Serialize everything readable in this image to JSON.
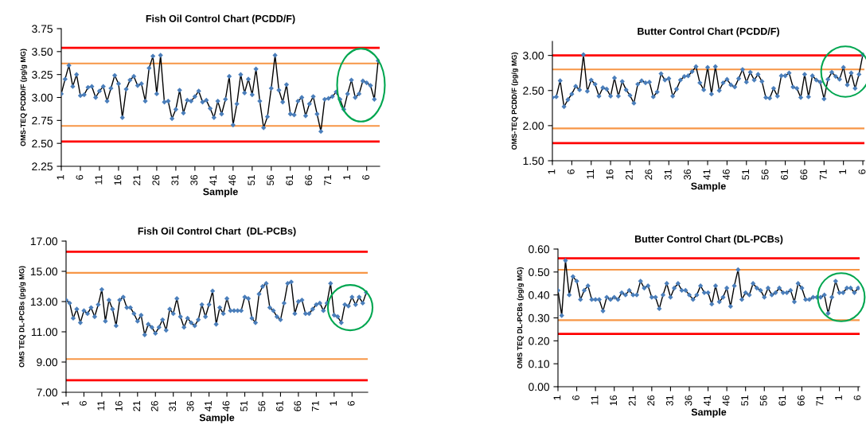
{
  "chart_data": [
    {
      "type": "line",
      "title": "Fish Oil Control Chart (PCDD/F)",
      "xlabel": "Sample",
      "ylabel": "OMS-TEQ PCDD/F (pg/g MG)",
      "marker": "diamond",
      "grid": false,
      "legend": false,
      "categories": [
        "1",
        null,
        null,
        null,
        null,
        "6",
        null,
        null,
        null,
        null,
        "11",
        null,
        null,
        null,
        null,
        "16",
        null,
        null,
        null,
        null,
        "21",
        null,
        null,
        null,
        null,
        "26",
        null,
        null,
        null,
        null,
        "31",
        null,
        null,
        null,
        null,
        "36",
        null,
        null,
        null,
        null,
        "41",
        null,
        null,
        null,
        null,
        "46",
        null,
        null,
        null,
        null,
        "51",
        null,
        null,
        null,
        null,
        "56",
        null,
        null,
        null,
        null,
        "61",
        null,
        null,
        null,
        null,
        "66",
        null,
        null,
        null,
        null,
        "71",
        null,
        null,
        null,
        null,
        "1",
        null,
        null,
        null,
        null,
        "6",
        null,
        null,
        null
      ],
      "series": [
        {
          "color": "#4a7ebb",
          "values": [
            3.04,
            3.2,
            3.35,
            3.12,
            3.25,
            3.02,
            3.03,
            3.11,
            3.12,
            3.0,
            3.07,
            3.12,
            2.96,
            3.1,
            3.24,
            3.15,
            2.78,
            3.09,
            3.19,
            3.23,
            3.13,
            3.15,
            2.96,
            3.32,
            3.45,
            3.04,
            3.46,
            2.95,
            2.96,
            2.77,
            2.87,
            3.08,
            2.83,
            2.97,
            2.96,
            3.01,
            3.07,
            2.95,
            2.97,
            2.88,
            2.78,
            2.96,
            2.82,
            2.98,
            3.23,
            2.7,
            2.93,
            3.25,
            3.05,
            3.2,
            3.03,
            3.31,
            2.96,
            2.67,
            2.79,
            3.1,
            3.46,
            3.08,
            2.95,
            3.14,
            2.82,
            2.81,
            2.96,
            3.0,
            2.8,
            2.93,
            3.01,
            2.82,
            2.63,
            2.98,
            2.99,
            3.01,
            3.06,
            2.98,
            2.87,
            3.04,
            3.19,
            3.0,
            3.04,
            3.18,
            3.16,
            3.13,
            2.98,
            3.4
          ]
        }
      ],
      "ylim": [
        2.25,
        3.75
      ],
      "yticks": [
        {
          "value": 2.25,
          "label": "2.25"
        },
        {
          "value": 2.5,
          "label": "2.50"
        },
        {
          "value": 2.75,
          "label": "2.75"
        },
        {
          "value": 3.0,
          "label": "3.00"
        },
        {
          "value": 3.25,
          "label": "3.25"
        },
        {
          "value": 3.5,
          "label": "3.50"
        },
        {
          "value": 3.75,
          "label": "3.75"
        }
      ],
      "ref_lines": [
        {
          "axis": "y",
          "value": 3.54,
          "color": "#ff0000"
        },
        {
          "axis": "y",
          "value": 3.37,
          "color": "#f79646"
        },
        {
          "axis": "y",
          "value": 2.69,
          "color": "#f79646"
        },
        {
          "axis": "y",
          "value": 2.52,
          "color": "#ff0000"
        }
      ]
    },
    {
      "type": "line",
      "title": "Butter Control Chart (PCDD/F)",
      "xlabel": "Sample",
      "ylabel": "OMS-TEQ PCDD/F (pg/g MG)",
      "marker": "diamond",
      "grid": false,
      "legend": false,
      "categories": [
        "1",
        null,
        null,
        null,
        null,
        "6",
        null,
        null,
        null,
        null,
        "11",
        null,
        null,
        null,
        null,
        "16",
        null,
        null,
        null,
        null,
        "21",
        null,
        null,
        null,
        null,
        "26",
        null,
        null,
        null,
        null,
        "31",
        null,
        null,
        null,
        null,
        "36",
        null,
        null,
        null,
        null,
        "41",
        null,
        null,
        null,
        null,
        "46",
        null,
        null,
        null,
        null,
        "51",
        null,
        null,
        null,
        null,
        "56",
        null,
        null,
        null,
        null,
        "61",
        null,
        null,
        null,
        null,
        "66",
        null,
        null,
        null,
        null,
        "71",
        null,
        null,
        null,
        null,
        "1",
        null,
        null,
        null,
        null,
        "6"
      ],
      "series": [
        {
          "color": "#4a7ebb",
          "values": [
            2.4,
            2.41,
            2.64,
            2.27,
            2.37,
            2.45,
            2.56,
            2.51,
            3.01,
            2.49,
            2.65,
            2.59,
            2.42,
            2.54,
            2.52,
            2.42,
            2.68,
            2.42,
            2.63,
            2.51,
            2.43,
            2.32,
            2.59,
            2.64,
            2.61,
            2.62,
            2.41,
            2.48,
            2.74,
            2.65,
            2.67,
            2.42,
            2.52,
            2.65,
            2.7,
            2.71,
            2.77,
            2.84,
            2.61,
            2.51,
            2.83,
            2.45,
            2.84,
            2.5,
            2.61,
            2.66,
            2.58,
            2.55,
            2.67,
            2.8,
            2.62,
            2.76,
            2.65,
            2.73,
            2.63,
            2.4,
            2.39,
            2.53,
            2.42,
            2.71,
            2.71,
            2.75,
            2.55,
            2.53,
            2.4,
            2.73,
            2.41,
            2.71,
            2.65,
            2.62,
            2.38,
            2.66,
            2.76,
            2.7,
            2.66,
            2.83,
            2.58,
            2.75,
            2.53,
            2.73,
            3.01
          ]
        }
      ],
      "ylim": [
        1.5,
        3.2
      ],
      "yticks": [
        {
          "value": 1.5,
          "label": "1.50"
        },
        {
          "value": 2.0,
          "label": "2.00"
        },
        {
          "value": 2.5,
          "label": "2.50"
        },
        {
          "value": 3.0,
          "label": "3.00"
        }
      ],
      "ref_lines": [
        {
          "axis": "y",
          "value": 3.0,
          "color": "#ff0000"
        },
        {
          "axis": "y",
          "value": 2.8,
          "color": "#f79646"
        },
        {
          "axis": "y",
          "value": 1.96,
          "color": "#f79646"
        },
        {
          "axis": "y",
          "value": 1.75,
          "color": "#ff0000"
        }
      ]
    },
    {
      "type": "line",
      "title": "Fish Oil Control Chart  (DL-PCBs)",
      "xlabel": "Sample",
      "ylabel": "OMS TEQ DL-PCBs (pg/g MG)",
      "marker": "diamond",
      "grid": false,
      "legend": false,
      "categories": [
        "1",
        null,
        null,
        null,
        null,
        "6",
        null,
        null,
        null,
        null,
        "11",
        null,
        null,
        null,
        null,
        "16",
        null,
        null,
        null,
        null,
        "21",
        null,
        null,
        null,
        null,
        "26",
        null,
        null,
        null,
        null,
        "31",
        null,
        null,
        null,
        null,
        "36",
        null,
        null,
        null,
        null,
        "41",
        null,
        null,
        null,
        null,
        "46",
        null,
        null,
        null,
        null,
        "51",
        null,
        null,
        null,
        null,
        "56",
        null,
        null,
        null,
        null,
        "61",
        null,
        null,
        null,
        null,
        "66",
        null,
        null,
        null,
        null,
        "71",
        null,
        null,
        null,
        null,
        "1",
        null,
        null,
        null,
        null,
        "6",
        null,
        null,
        null,
        null
      ],
      "series": [
        {
          "color": "#4a7ebb",
          "values": [
            13.1,
            12.9,
            11.9,
            12.5,
            11.6,
            12.4,
            12.2,
            12.6,
            12.0,
            12.8,
            13.8,
            11.7,
            13.1,
            12.5,
            11.4,
            13.1,
            13.3,
            12.6,
            12.6,
            12.2,
            11.7,
            12.1,
            10.8,
            11.5,
            11.3,
            10.9,
            11.3,
            11.8,
            11.1,
            12.5,
            12.2,
            13.2,
            12.0,
            11.3,
            11.9,
            11.6,
            11.4,
            11.8,
            12.8,
            12.0,
            12.8,
            13.7,
            11.5,
            12.6,
            12.2,
            13.2,
            12.4,
            12.4,
            12.4,
            12.4,
            13.3,
            13.2,
            11.9,
            11.6,
            13.5,
            14.0,
            14.2,
            12.6,
            12.4,
            12.0,
            11.8,
            12.9,
            14.2,
            14.3,
            12.2,
            13.0,
            13.1,
            12.2,
            12.2,
            12.5,
            12.8,
            12.9,
            12.4,
            12.9,
            14.2,
            12.1,
            12.0,
            11.6,
            12.8,
            12.7,
            13.3,
            12.8,
            13.3,
            12.9,
            13.6
          ]
        }
      ],
      "ylim": [
        7.0,
        17.0
      ],
      "yticks": [
        {
          "value": 7,
          "label": "7.00"
        },
        {
          "value": 9,
          "label": "9.00"
        },
        {
          "value": 11,
          "label": "11.00"
        },
        {
          "value": 13,
          "label": "13.00"
        },
        {
          "value": 15,
          "label": "15.00"
        },
        {
          "value": 17,
          "label": "17.00"
        }
      ],
      "ref_lines": [
        {
          "axis": "y",
          "value": 16.3,
          "color": "#ff0000"
        },
        {
          "axis": "y",
          "value": 14.9,
          "color": "#f79646"
        },
        {
          "axis": "y",
          "value": 9.2,
          "color": "#f79646"
        },
        {
          "axis": "y",
          "value": 7.8,
          "color": "#ff0000"
        }
      ]
    },
    {
      "type": "line",
      "title": "Butter Control Chart (DL-PCBs)",
      "xlabel": "Sample",
      "ylabel": "OMS TEQ DL-PCBs (pg/g MG)",
      "marker": "diamond",
      "grid": false,
      "legend": false,
      "categories": [
        "1",
        null,
        null,
        null,
        null,
        "6",
        null,
        null,
        null,
        null,
        "11",
        null,
        null,
        null,
        null,
        "16",
        null,
        null,
        null,
        null,
        "21",
        null,
        null,
        null,
        null,
        "26",
        null,
        null,
        null,
        null,
        "31",
        null,
        null,
        null,
        null,
        "36",
        null,
        null,
        null,
        null,
        "41",
        null,
        null,
        null,
        null,
        "46",
        null,
        null,
        null,
        null,
        "51",
        null,
        null,
        null,
        null,
        "56",
        null,
        null,
        null,
        null,
        "61",
        null,
        null,
        null,
        null,
        "66",
        null,
        null,
        null,
        null,
        "71",
        null,
        null,
        null,
        null,
        "1",
        null,
        null,
        null,
        null,
        "6"
      ],
      "series": [
        {
          "color": "#4a7ebb",
          "values": [
            0.42,
            0.31,
            0.55,
            0.4,
            0.48,
            0.46,
            0.38,
            0.42,
            0.44,
            0.38,
            0.38,
            0.38,
            0.33,
            0.39,
            0.38,
            0.39,
            0.38,
            0.41,
            0.4,
            0.42,
            0.4,
            0.4,
            0.46,
            0.43,
            0.44,
            0.39,
            0.39,
            0.34,
            0.4,
            0.45,
            0.39,
            0.43,
            0.45,
            0.42,
            0.42,
            0.4,
            0.38,
            0.4,
            0.44,
            0.41,
            0.41,
            0.36,
            0.44,
            0.37,
            0.39,
            0.43,
            0.35,
            0.44,
            0.51,
            0.38,
            0.41,
            0.4,
            0.45,
            0.43,
            0.42,
            0.39,
            0.43,
            0.4,
            0.41,
            0.43,
            0.41,
            0.41,
            0.42,
            0.37,
            0.45,
            0.43,
            0.38,
            0.38,
            0.39,
            0.39,
            0.39,
            0.4,
            0.32,
            0.39,
            0.46,
            0.41,
            0.41,
            0.43,
            0.43,
            0.41,
            0.43
          ]
        }
      ],
      "ylim": [
        0.0,
        0.6
      ],
      "yticks": [
        {
          "value": 0.0,
          "label": "0.00"
        },
        {
          "value": 0.1,
          "label": "0.10"
        },
        {
          "value": 0.2,
          "label": "0.20"
        },
        {
          "value": 0.3,
          "label": "0.30"
        },
        {
          "value": 0.4,
          "label": "0.40"
        },
        {
          "value": 0.5,
          "label": "0.50"
        },
        {
          "value": 0.6,
          "label": "0.60"
        }
      ],
      "ref_lines": [
        {
          "axis": "y",
          "value": 0.56,
          "color": "#ff0000"
        },
        {
          "axis": "y",
          "value": 0.51,
          "color": "#f79646"
        },
        {
          "axis": "y",
          "value": 0.29,
          "color": "#f79646"
        },
        {
          "axis": "y",
          "value": 0.23,
          "color": "#ff0000"
        }
      ]
    }
  ]
}
